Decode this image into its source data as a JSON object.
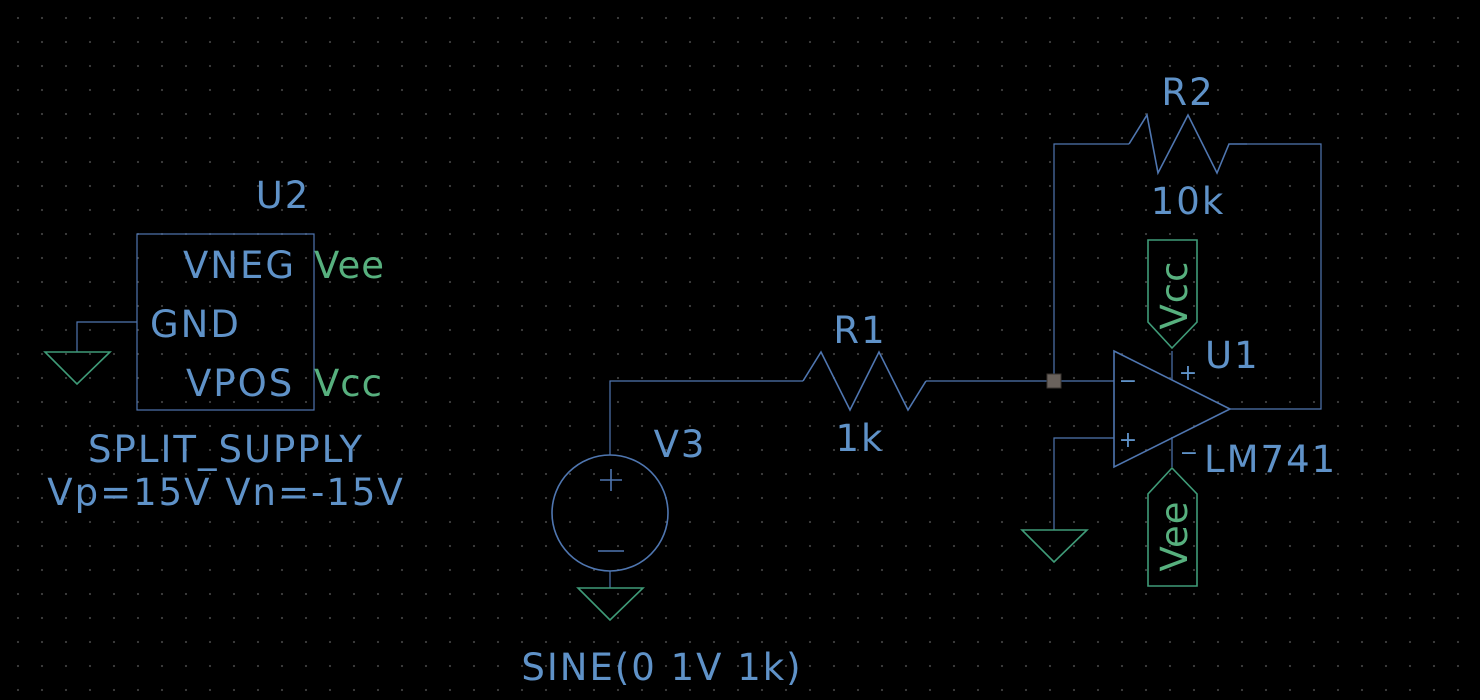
{
  "u2": {
    "ref": "U2",
    "pins": {
      "vneg": "VNEG",
      "gnd": "GND",
      "vpos": "VPOS"
    },
    "net_vneg": "Vee",
    "net_vpos": "Vcc",
    "model": "SPLIT_SUPPLY",
    "params": "Vp=15V Vn=-15V"
  },
  "v3": {
    "ref": "V3",
    "plus": "+",
    "minus": "−",
    "value": "SINE(0 1V 1k)"
  },
  "r1": {
    "ref": "R1",
    "value": "1k"
  },
  "r2": {
    "ref": "R2",
    "value": "10k"
  },
  "u1": {
    "ref": "U1",
    "model": "LM741",
    "in_minus": "−",
    "in_plus": "+",
    "supply_plus": "+",
    "supply_minus": "−"
  },
  "power_labels": {
    "top": "Vcc",
    "bottom": "Vee"
  },
  "colors": {
    "background": "#000000",
    "wire": "#4f76b0",
    "label": "#5f92c8",
    "net_label": "#57b07e",
    "ground": "#3f9b78",
    "junction": "#6a625c"
  }
}
